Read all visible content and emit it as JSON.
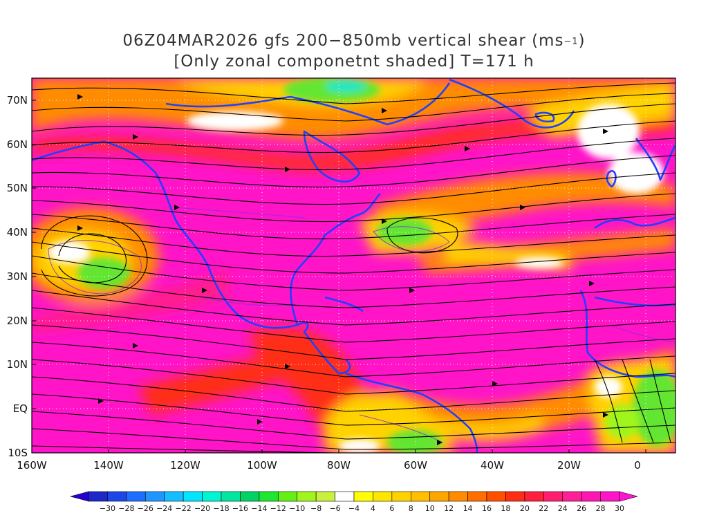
{
  "title": {
    "line1_prefix": "06Z04MAR2026 gfs 200−850mb vertical shear (ms",
    "line1_sup": "−1",
    "line1_suffix": ")",
    "line2": "[Only zonal componetnt shaded] T=171 h"
  },
  "axes": {
    "lat_labels": [
      "70N",
      "60N",
      "50N",
      "40N",
      "30N",
      "20N",
      "10N",
      "EQ",
      "10S"
    ],
    "lon_labels": [
      "160W",
      "140W",
      "120W",
      "100W",
      "80W",
      "60W",
      "40W",
      "20W",
      "0"
    ]
  },
  "colorbar": {
    "labels": [
      "-30",
      "-28",
      "-26",
      "-24",
      "-22",
      "-20",
      "-18",
      "-16",
      "-14",
      "-12",
      "-10",
      "-8",
      "-6",
      "-4",
      "4",
      "6",
      "8",
      "10",
      "12",
      "14",
      "16",
      "18",
      "20",
      "22",
      "24",
      "26",
      "28",
      "30"
    ],
    "colors": [
      "#1e28c8",
      "#1e46e6",
      "#1e6eff",
      "#1e96ff",
      "#14beff",
      "#00e6ff",
      "#00f5d2",
      "#00e6a0",
      "#00d264",
      "#1ee632",
      "#64f014",
      "#a0f51e",
      "#c8f03c",
      "#ffffff",
      "#ffff00",
      "#ffe600",
      "#ffd200",
      "#ffbe00",
      "#ffa500",
      "#ff8c00",
      "#ff6e00",
      "#ff5000",
      "#ff2d14",
      "#ff1e3c",
      "#ff1e6e",
      "#ff1e96",
      "#ff14b4",
      "#ff14c8"
    ]
  },
  "field_colors": {
    "magenta": "#ff14c8",
    "pink": "#ff1e8c",
    "red": "#ff2d14",
    "orange": "#ff8c00",
    "yellow": "#ffd200",
    "green": "#64e632",
    "white": "#ffffff",
    "coast": "#2040ff",
    "streamline": "#000000"
  }
}
